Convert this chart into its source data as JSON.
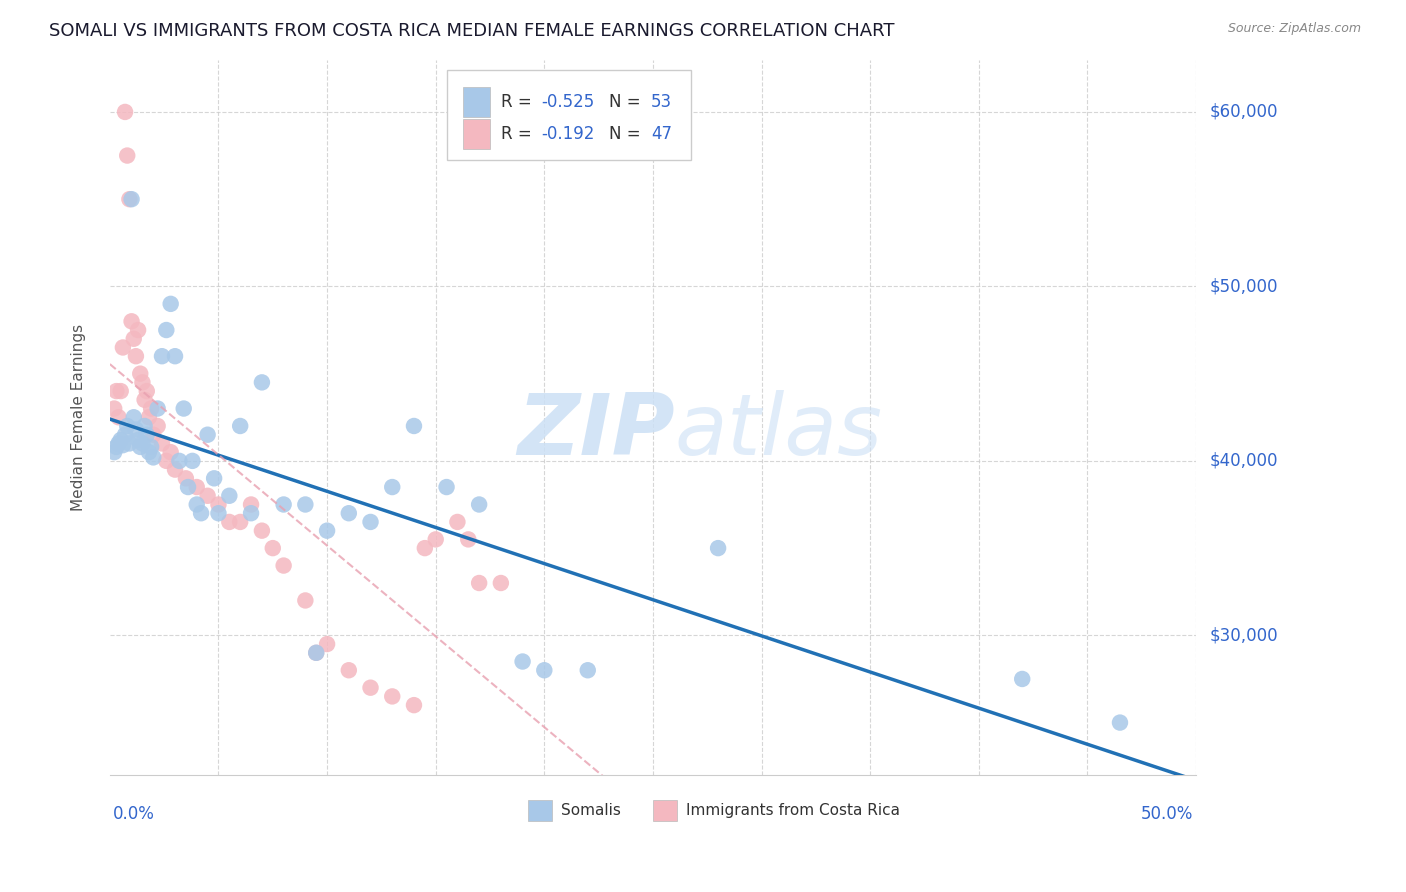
{
  "title": "SOMALI VS IMMIGRANTS FROM COSTA RICA MEDIAN FEMALE EARNINGS CORRELATION CHART",
  "source": "Source: ZipAtlas.com",
  "ylabel": "Median Female Earnings",
  "x_min": 0.0,
  "x_max": 0.5,
  "y_min": 22000,
  "y_max": 63000,
  "y_ticks": [
    30000,
    40000,
    50000,
    60000
  ],
  "y_tick_labels": [
    "$30,000",
    "$40,000",
    "$50,000",
    "$60,000"
  ],
  "somali_R": "-0.525",
  "somali_N": "53",
  "costa_rica_R": "-0.192",
  "costa_rica_N": "47",
  "somali_color": "#a8c8e8",
  "costa_rica_color": "#f4b8c0",
  "somali_line_color": "#2171b5",
  "costa_rica_line_color": "#e8a0b0",
  "legend_color": "#3366cc",
  "watermark_color": "#ddeeff",
  "grid_color": "#cccccc",
  "somali_points_x": [
    0.002,
    0.003,
    0.004,
    0.005,
    0.006,
    0.007,
    0.008,
    0.009,
    0.01,
    0.011,
    0.012,
    0.013,
    0.014,
    0.015,
    0.016,
    0.017,
    0.018,
    0.019,
    0.02,
    0.022,
    0.024,
    0.026,
    0.028,
    0.03,
    0.032,
    0.034,
    0.036,
    0.038,
    0.04,
    0.042,
    0.045,
    0.048,
    0.05,
    0.055,
    0.06,
    0.065,
    0.07,
    0.08,
    0.09,
    0.095,
    0.1,
    0.11,
    0.12,
    0.13,
    0.14,
    0.155,
    0.17,
    0.19,
    0.2,
    0.22,
    0.28,
    0.42,
    0.465
  ],
  "somali_points_y": [
    40500,
    40800,
    41000,
    41200,
    40900,
    41500,
    42000,
    41000,
    55000,
    42500,
    41800,
    41200,
    40800,
    41000,
    42000,
    41500,
    40500,
    40800,
    40200,
    43000,
    46000,
    47500,
    49000,
    46000,
    40000,
    43000,
    38500,
    40000,
    37500,
    37000,
    41500,
    39000,
    37000,
    38000,
    42000,
    37000,
    44500,
    37500,
    37500,
    29000,
    36000,
    37000,
    36500,
    38500,
    42000,
    38500,
    37500,
    28500,
    28000,
    28000,
    35000,
    27500,
    25000
  ],
  "costa_rica_points_x": [
    0.002,
    0.003,
    0.004,
    0.005,
    0.006,
    0.007,
    0.008,
    0.009,
    0.01,
    0.011,
    0.012,
    0.013,
    0.014,
    0.015,
    0.016,
    0.017,
    0.018,
    0.019,
    0.02,
    0.022,
    0.024,
    0.026,
    0.028,
    0.03,
    0.035,
    0.04,
    0.045,
    0.05,
    0.055,
    0.06,
    0.065,
    0.07,
    0.075,
    0.08,
    0.09,
    0.095,
    0.1,
    0.11,
    0.12,
    0.13,
    0.14,
    0.145,
    0.15,
    0.16,
    0.165,
    0.17,
    0.18
  ],
  "costa_rica_points_y": [
    43000,
    44000,
    42500,
    44000,
    46500,
    60000,
    57500,
    55000,
    48000,
    47000,
    46000,
    47500,
    45000,
    44500,
    43500,
    44000,
    42500,
    43000,
    41500,
    42000,
    41000,
    40000,
    40500,
    39500,
    39000,
    38500,
    38000,
    37500,
    36500,
    36500,
    37500,
    36000,
    35000,
    34000,
    32000,
    29000,
    29500,
    28000,
    27000,
    26500,
    26000,
    35000,
    35500,
    36500,
    35500,
    33000,
    33000
  ]
}
